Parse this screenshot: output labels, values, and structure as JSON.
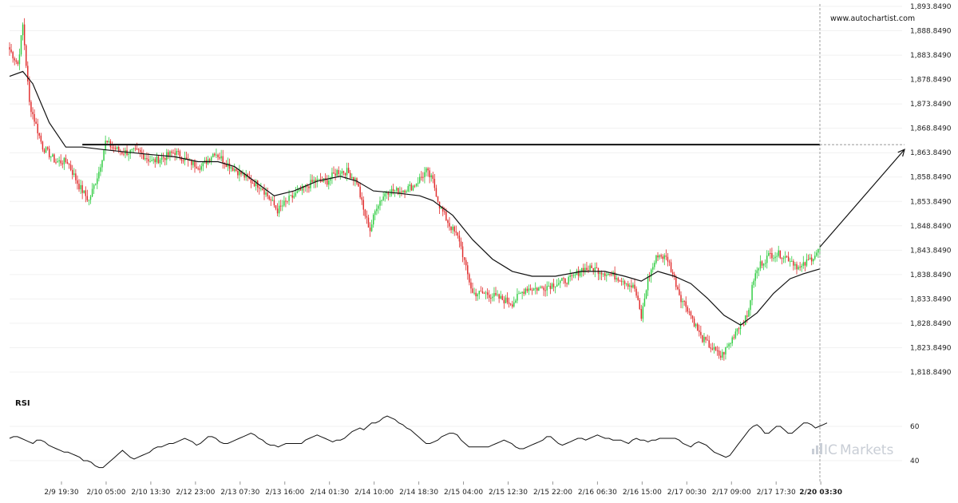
{
  "watermark": "www.autochartist.com",
  "brand": {
    "prefix": "IC",
    "name": "Markets"
  },
  "rsi_label": "RSI",
  "colors": {
    "up": "#2ecc40",
    "down": "#e02b2b",
    "line": "#111111",
    "brand": "#c9ced6"
  },
  "chart_data": [
    {
      "type": "candlestick",
      "title": "",
      "ylim": [
        1815.849,
        1893.849
      ],
      "y_ticks": [
        "1,893.8490",
        "1,888.8490",
        "1,883.8490",
        "1,878.8490",
        "1,873.8490",
        "1,868.8490",
        "1,863.8490",
        "1,858.8490",
        "1,853.8490",
        "1,848.8490",
        "1,843.8490",
        "1,838.8490",
        "1,833.8490",
        "1,828.8490",
        "1,823.8490",
        "1,818.8490"
      ],
      "x_ticks": [
        "2/9 19:30",
        "2/10 05:00",
        "2/10 13:30",
        "2/12 23:00",
        "2/13 07:30",
        "2/13 16:00",
        "2/14 01:30",
        "2/14 10:00",
        "2/14 18:30",
        "2/15 04:00",
        "2/15 12:30",
        "2/15 22:00",
        "2/16 06:30",
        "2/16 15:00",
        "2/17 00:30",
        "2/17 09:00",
        "2/17 17:30",
        "2/20 03:30"
      ],
      "close_path": [
        [
          0,
          1885
        ],
        [
          5,
          1882
        ],
        [
          8,
          1890
        ],
        [
          12,
          1874
        ],
        [
          20,
          1865
        ],
        [
          28,
          1862
        ],
        [
          35,
          1862
        ],
        [
          42,
          1857
        ],
        [
          48,
          1854
        ],
        [
          54,
          1860
        ],
        [
          58,
          1866
        ],
        [
          62,
          1865
        ],
        [
          68,
          1864
        ],
        [
          78,
          1864
        ],
        [
          86,
          1862
        ],
        [
          94,
          1863
        ],
        [
          100,
          1864
        ],
        [
          108,
          1862
        ],
        [
          116,
          1861
        ],
        [
          124,
          1864
        ],
        [
          130,
          1862
        ],
        [
          138,
          1860
        ],
        [
          146,
          1858
        ],
        [
          152,
          1857
        ],
        [
          158,
          1854
        ],
        [
          162,
          1852
        ],
        [
          168,
          1854
        ],
        [
          176,
          1856
        ],
        [
          184,
          1858
        ],
        [
          192,
          1858
        ],
        [
          198,
          1860
        ],
        [
          204,
          1860
        ],
        [
          210,
          1858
        ],
        [
          214,
          1852
        ],
        [
          218,
          1848
        ],
        [
          222,
          1853
        ],
        [
          228,
          1856
        ],
        [
          236,
          1856
        ],
        [
          244,
          1857
        ],
        [
          252,
          1860
        ],
        [
          256,
          1858
        ],
        [
          260,
          1853
        ],
        [
          266,
          1849
        ],
        [
          272,
          1846
        ],
        [
          276,
          1840
        ],
        [
          280,
          1835
        ],
        [
          288,
          1835
        ],
        [
          296,
          1834
        ],
        [
          304,
          1833
        ],
        [
          312,
          1836
        ],
        [
          320,
          1836
        ],
        [
          330,
          1837
        ],
        [
          340,
          1838
        ],
        [
          346,
          1840
        ],
        [
          354,
          1840
        ],
        [
          362,
          1839
        ],
        [
          370,
          1838
        ],
        [
          378,
          1836
        ],
        [
          382,
          1830
        ],
        [
          386,
          1838
        ],
        [
          392,
          1843
        ],
        [
          398,
          1842
        ],
        [
          402,
          1838
        ],
        [
          406,
          1834
        ],
        [
          410,
          1832
        ],
        [
          414,
          1829
        ],
        [
          418,
          1826
        ],
        [
          424,
          1824
        ],
        [
          430,
          1822
        ],
        [
          436,
          1825
        ],
        [
          440,
          1828
        ],
        [
          446,
          1830
        ],
        [
          450,
          1838
        ],
        [
          454,
          1841
        ],
        [
          460,
          1843
        ],
        [
          466,
          1843
        ],
        [
          472,
          1842
        ],
        [
          478,
          1840
        ],
        [
          484,
          1842
        ],
        [
          490,
          1844
        ]
      ],
      "ma_path": [
        [
          0,
          1879.5
        ],
        [
          8,
          1880.5
        ],
        [
          14,
          1878
        ],
        [
          24,
          1870
        ],
        [
          34,
          1865
        ],
        [
          44,
          1865
        ],
        [
          56,
          1864.5
        ],
        [
          70,
          1864
        ],
        [
          84,
          1863.5
        ],
        [
          100,
          1863
        ],
        [
          114,
          1862
        ],
        [
          126,
          1862
        ],
        [
          136,
          1861
        ],
        [
          148,
          1858
        ],
        [
          160,
          1855
        ],
        [
          172,
          1856
        ],
        [
          186,
          1858
        ],
        [
          200,
          1859
        ],
        [
          210,
          1858
        ],
        [
          220,
          1856
        ],
        [
          236,
          1855.5
        ],
        [
          248,
          1855
        ],
        [
          256,
          1854
        ],
        [
          268,
          1851
        ],
        [
          280,
          1846
        ],
        [
          292,
          1842
        ],
        [
          304,
          1839.5
        ],
        [
          316,
          1838.5
        ],
        [
          330,
          1838.5
        ],
        [
          346,
          1839.5
        ],
        [
          360,
          1839.5
        ],
        [
          372,
          1838.5
        ],
        [
          382,
          1837.5
        ],
        [
          392,
          1839.5
        ],
        [
          402,
          1838.5
        ],
        [
          412,
          1837
        ],
        [
          422,
          1834
        ],
        [
          432,
          1830.5
        ],
        [
          442,
          1828.5
        ],
        [
          452,
          1831
        ],
        [
          462,
          1835
        ],
        [
          472,
          1838
        ],
        [
          480,
          1839
        ],
        [
          490,
          1840
        ]
      ],
      "ma_style": "thin black line",
      "resistance": {
        "value": 1865.5,
        "from_candle": 44,
        "to_candle": 490
      },
      "projection": {
        "from_candle": 490,
        "from_value": 1844.5,
        "to_value": 1864.5
      },
      "candle_count": 491
    },
    {
      "type": "line",
      "title": "RSI",
      "ylim": [
        33,
        70
      ],
      "y_ticks": [
        "60",
        "40"
      ],
      "values": [
        53,
        54,
        54,
        53,
        52,
        51,
        50,
        52,
        52,
        51,
        49,
        48,
        47,
        46,
        45,
        45,
        44,
        43,
        42,
        40,
        40,
        39,
        37,
        36,
        36,
        38,
        40,
        42,
        44,
        46,
        44,
        42,
        41,
        42,
        43,
        44,
        45,
        47,
        48,
        48,
        49,
        50,
        50,
        51,
        52,
        53,
        52,
        51,
        49,
        50,
        52,
        54,
        54,
        53,
        51,
        50,
        50,
        51,
        52,
        53,
        54,
        55,
        56,
        55,
        53,
        52,
        50,
        49,
        49,
        48,
        49,
        50,
        50,
        50,
        50,
        50,
        52,
        53,
        54,
        55,
        54,
        53,
        52,
        51,
        52,
        52,
        53,
        55,
        57,
        58,
        59,
        58,
        60,
        62,
        62,
        63,
        65,
        66,
        65,
        64,
        62,
        61,
        59,
        58,
        56,
        54,
        52,
        50,
        50,
        51,
        52,
        54,
        55,
        56,
        56,
        55,
        52,
        50,
        48,
        48,
        48,
        48,
        48,
        48,
        49,
        50,
        51,
        52,
        51,
        50,
        48,
        47,
        47,
        48,
        49,
        50,
        51,
        52,
        54,
        54,
        52,
        50,
        49,
        50,
        51,
        52,
        53,
        53,
        52,
        53,
        54,
        55,
        54,
        53,
        53,
        52,
        52,
        52,
        51,
        50,
        52,
        53,
        52,
        52,
        51,
        52,
        52,
        53,
        53,
        53,
        53,
        53,
        52,
        50,
        49,
        48,
        50,
        51,
        50,
        49,
        47,
        45,
        44,
        43,
        42,
        43,
        46,
        49,
        52,
        55,
        58,
        60,
        61,
        59,
        56,
        56,
        58,
        60,
        60,
        58,
        56,
        56,
        58,
        60,
        62,
        62,
        61,
        59,
        60,
        61,
        62
      ]
    }
  ]
}
